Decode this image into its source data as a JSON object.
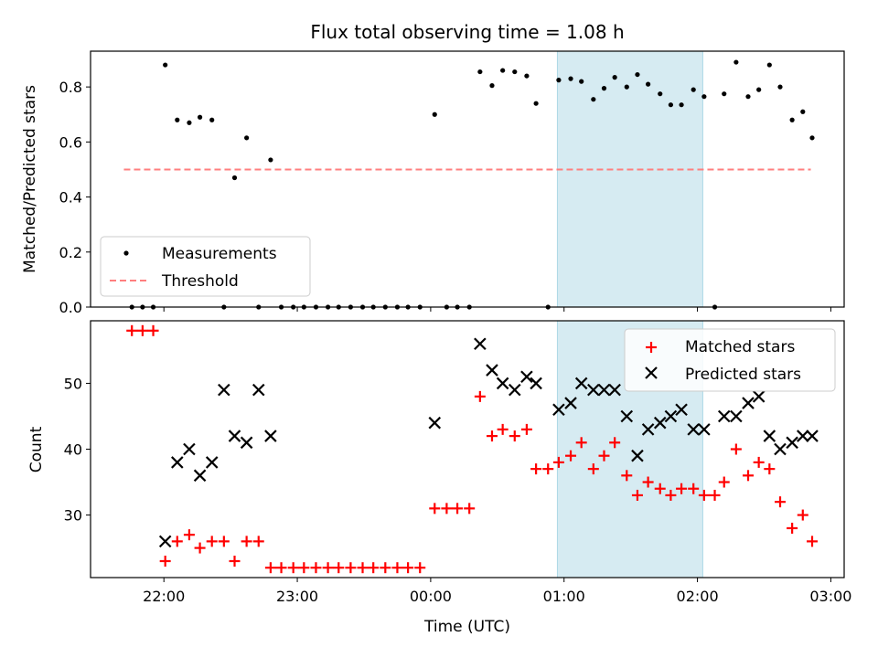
{
  "chart_data": [
    {
      "type": "scatter",
      "title": "Flux total observing time = 1.08 h",
      "xlabel": "",
      "ylabel": "Matched/Predicted stars",
      "ylim": [
        0,
        0.93
      ],
      "yticks": [
        "0.0",
        "0.2",
        "0.4",
        "0.6",
        "0.8"
      ],
      "ytick_values": [
        0,
        0.2,
        0.4,
        0.6,
        0.8
      ],
      "shaded_interval_hours": [
        0.95,
        2.04
      ],
      "legend": {
        "position": "lower-left",
        "measurements_label": "Measurements",
        "threshold_label": "Threshold"
      },
      "threshold": {
        "value": 0.5,
        "x_range_hours": [
          -2.3,
          2.85
        ],
        "color": "#ff7f7f"
      },
      "series": [
        {
          "name": "Measurements",
          "marker": "dot",
          "color": "#000000",
          "x_hours": [
            -2.24,
            -2.16,
            -2.08,
            -1.99,
            -1.9,
            -1.81,
            -1.73,
            -1.64,
            -1.55,
            -1.47,
            -1.38,
            -1.29,
            -1.2,
            -1.12,
            -1.03,
            -0.95,
            -0.86,
            -0.77,
            -0.69,
            -0.6,
            -0.51,
            -0.43,
            -0.34,
            -0.25,
            -0.17,
            -0.08,
            0.03,
            0.12,
            0.2,
            0.29,
            0.37,
            0.46,
            0.54,
            0.63,
            0.72,
            0.79,
            0.88,
            0.96,
            1.05,
            1.13,
            1.22,
            1.3,
            1.38,
            1.47,
            1.55,
            1.63,
            1.72,
            1.8,
            1.88,
            1.97,
            2.05,
            2.13,
            2.2,
            2.29,
            2.38,
            2.46,
            2.54,
            2.62,
            2.71,
            2.79,
            2.86
          ],
          "values": [
            0,
            0,
            0,
            0.88,
            0.68,
            0.67,
            0.69,
            0.68,
            0,
            0.47,
            0.615,
            0,
            0.535,
            0,
            0,
            0,
            0,
            0,
            0,
            0,
            0,
            0,
            0,
            0,
            0,
            0,
            0.7,
            0,
            0,
            0,
            0.855,
            0.805,
            0.86,
            0.855,
            0.84,
            0.74,
            0,
            0.825,
            0.83,
            0.82,
            0.755,
            0.795,
            0.835,
            0.8,
            0.845,
            0.81,
            0.775,
            0.735,
            0.735,
            0.79,
            0.765,
            0,
            0.775,
            0.89,
            0.765,
            0.79,
            0.88,
            0.8,
            0.68,
            0.71,
            0.615
          ]
        }
      ]
    },
    {
      "type": "scatter",
      "title": "",
      "xlabel": "Time (UTC)",
      "ylabel": "Count",
      "ylim": [
        20.5,
        59.5
      ],
      "xlim_hours": [
        -2.55,
        3.1
      ],
      "yticks": [
        "30",
        "40",
        "50"
      ],
      "ytick_values": [
        30,
        40,
        50
      ],
      "xticks": [
        "22:00",
        "23:00",
        "00:00",
        "01:00",
        "02:00",
        "03:00"
      ],
      "xtick_values_hours": [
        -2,
        -1,
        0,
        1,
        2,
        3
      ],
      "shaded_interval_hours": [
        0.95,
        2.04
      ],
      "legend": {
        "position": "upper-right",
        "matched_label": "Matched stars",
        "predicted_label": "Predicted stars"
      },
      "series": [
        {
          "name": "Matched stars",
          "marker": "plus",
          "color": "#ff0000",
          "x_hours": [
            -2.24,
            -2.16,
            -2.08,
            -1.99,
            -1.9,
            -1.81,
            -1.73,
            -1.64,
            -1.55,
            -1.47,
            -1.38,
            -1.29,
            -1.2,
            -1.12,
            -1.03,
            -0.95,
            -0.86,
            -0.77,
            -0.69,
            -0.6,
            -0.51,
            -0.43,
            -0.34,
            -0.25,
            -0.17,
            -0.08,
            0.03,
            0.12,
            0.2,
            0.29,
            0.37,
            0.46,
            0.54,
            0.63,
            0.72,
            0.79,
            0.88,
            0.96,
            1.05,
            1.13,
            1.22,
            1.3,
            1.38,
            1.47,
            1.55,
            1.63,
            1.72,
            1.8,
            1.88,
            1.97,
            2.05,
            2.13,
            2.2,
            2.29,
            2.38,
            2.46,
            2.54,
            2.62,
            2.71,
            2.79,
            2.86
          ],
          "values": [
            58,
            58,
            58,
            23,
            26,
            27,
            25,
            26,
            26,
            23,
            26,
            26,
            22,
            22,
            22,
            22,
            22,
            22,
            22,
            22,
            22,
            22,
            22,
            22,
            22,
            22,
            31,
            31,
            31,
            31,
            48,
            42,
            43,
            42,
            43,
            37,
            37,
            38,
            39,
            41,
            37,
            39,
            41,
            36,
            33,
            35,
            34,
            33,
            34,
            34,
            33,
            33,
            35,
            40,
            36,
            38,
            37,
            32,
            28,
            30,
            26
          ]
        },
        {
          "name": "Predicted stars",
          "marker": "x",
          "color": "#000000",
          "x_hours": [
            -1.99,
            -1.9,
            -1.81,
            -1.73,
            -1.64,
            -1.55,
            -1.47,
            -1.38,
            -1.29,
            -1.2,
            0.03,
            0.37,
            0.46,
            0.54,
            0.63,
            0.72,
            0.79,
            0.96,
            1.05,
            1.13,
            1.22,
            1.3,
            1.38,
            1.47,
            1.55,
            1.63,
            1.72,
            1.8,
            1.88,
            1.97,
            2.05,
            2.2,
            2.29,
            2.38,
            2.46,
            2.54,
            2.62,
            2.71,
            2.79,
            2.86
          ],
          "values": [
            26,
            38,
            40,
            36,
            38,
            49,
            42,
            41,
            49,
            42,
            44,
            56,
            52,
            50,
            49,
            51,
            50,
            46,
            47,
            50,
            49,
            49,
            49,
            45,
            39,
            43,
            44,
            45,
            46,
            43,
            43,
            45,
            45,
            47,
            48,
            42,
            40,
            41,
            42,
            42
          ]
        }
      ]
    }
  ]
}
